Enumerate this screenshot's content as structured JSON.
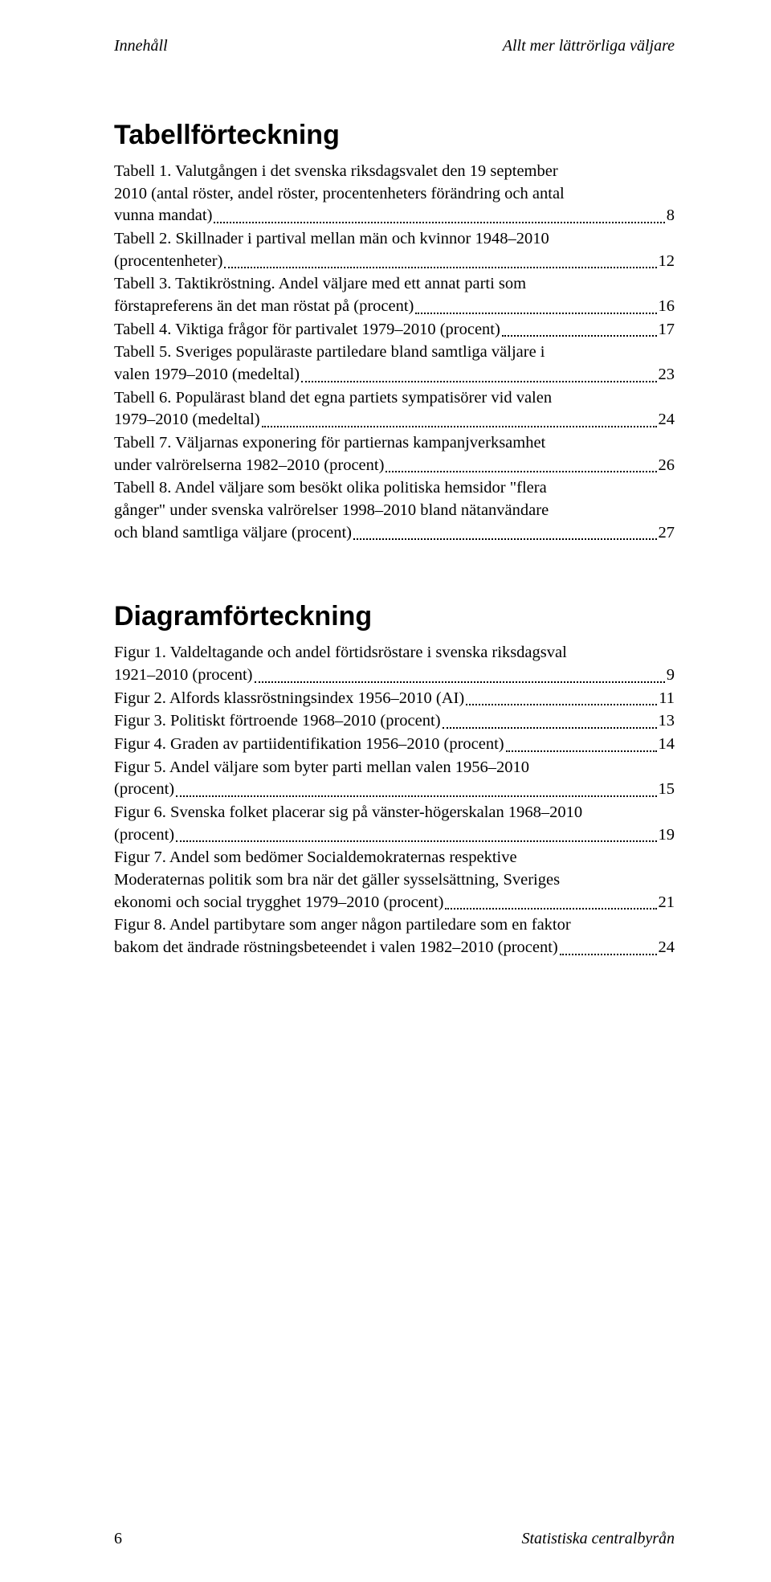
{
  "header": {
    "left": "Innehåll",
    "right": "Allt mer lättrörliga väljare"
  },
  "tables_section": {
    "title": "Tabellförteckning",
    "entries": [
      {
        "lines": [
          "Tabell 1. Valutgången i det svenska riksdagsvalet den 19 september",
          "2010 (antal röster, andel röster, procentenheters förändring och antal",
          "vunna mandat)"
        ],
        "page": "8"
      },
      {
        "lines": [
          "Tabell 2. Skillnader i partival mellan män och kvinnor 1948–2010",
          "(procentenheter)"
        ],
        "page": "12"
      },
      {
        "lines": [
          "Tabell 3. Taktikröstning. Andel väljare med ett annat parti som",
          "förstapreferens än det man röstat på (procent)"
        ],
        "page": "16"
      },
      {
        "lines": [
          "Tabell 4. Viktiga frågor för partivalet 1979–2010 (procent)"
        ],
        "page": "17"
      },
      {
        "lines": [
          "Tabell 5. Sveriges populäraste partiledare bland samtliga väljare i",
          "valen 1979–2010 (medeltal)"
        ],
        "page": "23"
      },
      {
        "lines": [
          "Tabell 6. Populärast bland det egna partiets sympatisörer vid valen",
          "1979–2010 (medeltal)"
        ],
        "page": "24"
      },
      {
        "lines": [
          "Tabell 7. Väljarnas exponering för partiernas kampanjverksamhet",
          "under valrörelserna 1982–2010 (procent)"
        ],
        "page": "26"
      },
      {
        "lines": [
          "Tabell 8. Andel väljare som besökt olika politiska hemsidor \"flera",
          "gånger\" under svenska valrörelser 1998–2010 bland nätanvändare",
          "och bland samtliga väljare (procent)"
        ],
        "page": "27"
      }
    ]
  },
  "figures_section": {
    "title": "Diagramförteckning",
    "entries": [
      {
        "lines": [
          "Figur 1. Valdeltagande och andel förtidsröstare i svenska riksdagsval",
          "1921–2010 (procent)"
        ],
        "page": "9"
      },
      {
        "lines": [
          "Figur 2. Alfords klassröstningsindex 1956–2010 (AI)"
        ],
        "page": "11"
      },
      {
        "lines": [
          "Figur 3. Politiskt förtroende 1968–2010 (procent)"
        ],
        "page": "13"
      },
      {
        "lines": [
          "Figur 4. Graden av partiidentifikation 1956–2010 (procent)"
        ],
        "page": "14"
      },
      {
        "lines": [
          "Figur 5. Andel väljare som byter parti mellan valen 1956–2010",
          "(procent)"
        ],
        "page": "15"
      },
      {
        "lines": [
          "Figur 6. Svenska folket placerar sig på vänster-högerskalan 1968–2010",
          "(procent)"
        ],
        "page": "19"
      },
      {
        "lines": [
          "Figur 7. Andel som bedömer Socialdemokraternas respektive",
          "Moderaternas politik som bra när det gäller sysselsättning, Sveriges",
          "ekonomi och social trygghet 1979–2010 (procent)"
        ],
        "page": "21"
      },
      {
        "lines": [
          "Figur 8. Andel partibytare som anger någon partiledare som en faktor",
          "bakom det ändrade röstningsbeteendet i valen 1982–2010 (procent)"
        ],
        "page": "24"
      }
    ]
  },
  "footer": {
    "page_number": "6",
    "publisher": "Statistiska centralbyrån"
  }
}
